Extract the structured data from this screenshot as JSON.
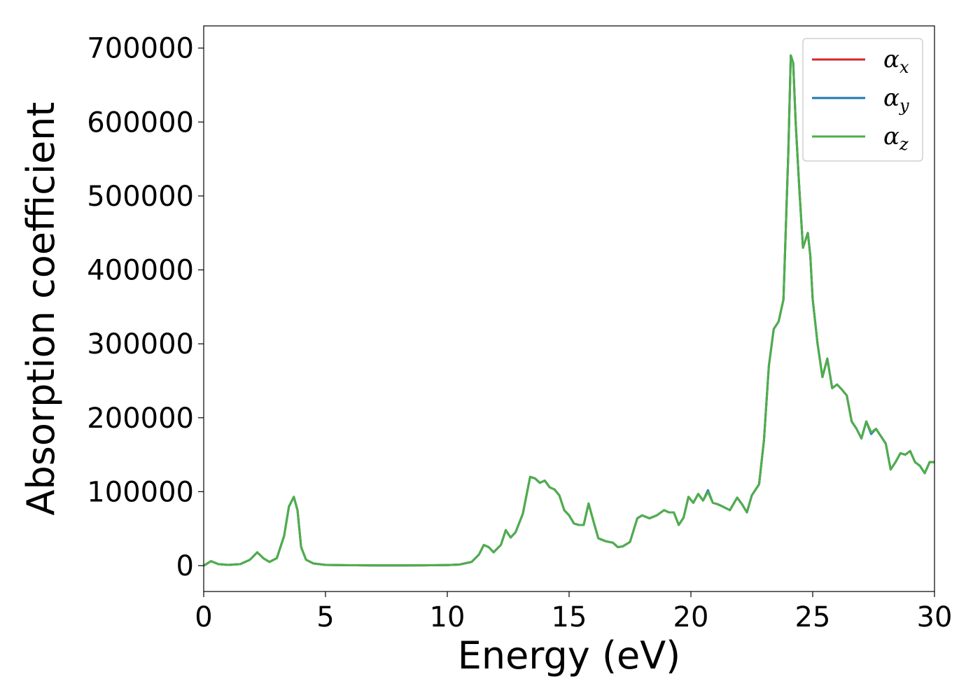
{
  "chart_data": {
    "type": "line",
    "xlabel": "Energy (eV)",
    "ylabel": "Absorption coefficient",
    "xlim": [
      0,
      30
    ],
    "ylim": [
      -35000,
      730000
    ],
    "xticks": [
      0,
      5,
      10,
      15,
      20,
      25,
      30
    ],
    "xtick_labels": [
      "0",
      "5",
      "10",
      "15",
      "20",
      "25",
      "30"
    ],
    "yticks": [
      0,
      100000,
      200000,
      300000,
      400000,
      500000,
      600000,
      700000
    ],
    "ytick_labels": [
      "0",
      "100000",
      "200000",
      "300000",
      "400000",
      "500000",
      "600000",
      "700000"
    ],
    "grid": false,
    "legend": {
      "position": "top-right",
      "entries": [
        {
          "symbol": "α",
          "sub": "x",
          "color": "#d62728"
        },
        {
          "symbol": "α",
          "sub": "y",
          "color": "#1f77b4"
        },
        {
          "symbol": "α",
          "sub": "z",
          "color": "#4daf4a"
        }
      ]
    },
    "x": [
      0,
      0.3,
      0.6,
      1.0,
      1.5,
      1.9,
      2.2,
      2.45,
      2.7,
      3.0,
      3.3,
      3.5,
      3.7,
      3.85,
      4.0,
      4.2,
      4.5,
      5,
      6,
      7,
      8,
      9,
      10,
      10.5,
      11.0,
      11.3,
      11.5,
      11.7,
      11.9,
      12.2,
      12.4,
      12.6,
      12.8,
      13.1,
      13.4,
      13.6,
      13.8,
      14.0,
      14.2,
      14.4,
      14.6,
      14.8,
      15.0,
      15.2,
      15.4,
      15.6,
      15.8,
      16.0,
      16.2,
      16.5,
      16.8,
      17.0,
      17.2,
      17.5,
      17.8,
      18.0,
      18.3,
      18.6,
      18.9,
      19.1,
      19.3,
      19.5,
      19.7,
      19.9,
      20.1,
      20.3,
      20.5,
      20.7,
      20.9,
      21.1,
      21.3,
      21.6,
      21.9,
      22.1,
      22.3,
      22.5,
      22.8,
      23.0,
      23.2,
      23.4,
      23.6,
      23.8,
      24.0,
      24.1,
      24.2,
      24.3,
      24.45,
      24.6,
      24.7,
      24.8,
      24.9,
      25.0,
      25.2,
      25.4,
      25.6,
      25.8,
      26.0,
      26.2,
      26.4,
      26.6,
      26.8,
      27.0,
      27.2,
      27.4,
      27.6,
      27.8,
      28.0,
      28.2,
      28.4,
      28.6,
      28.8,
      29.0,
      29.2,
      29.4,
      29.6,
      29.8,
      30.0
    ],
    "series": [
      {
        "name": "αx",
        "color": "#d62728",
        "values": [
          0,
          6000,
          2000,
          1000,
          2000,
          8000,
          18000,
          10000,
          5000,
          10000,
          40000,
          80000,
          93000,
          75000,
          25000,
          8000,
          3000,
          1000,
          500,
          300,
          300,
          400,
          800,
          1500,
          5000,
          15000,
          28000,
          25000,
          18000,
          28000,
          48000,
          38000,
          45000,
          70000,
          120000,
          118000,
          112000,
          115000,
          106000,
          103000,
          95000,
          75000,
          68000,
          57000,
          55000,
          55000,
          84000,
          60000,
          37000,
          33000,
          31000,
          25000,
          26000,
          32000,
          64000,
          68000,
          64000,
          68000,
          75000,
          72000,
          72000,
          55000,
          65000,
          93000,
          85000,
          97000,
          88000,
          100000,
          85000,
          83000,
          80000,
          75000,
          92000,
          83000,
          72000,
          95000,
          110000,
          170000,
          270000,
          320000,
          330000,
          360000,
          560000,
          690000,
          680000,
          600000,
          510000,
          430000,
          440000,
          450000,
          420000,
          360000,
          300000,
          255000,
          280000,
          240000,
          245000,
          238000,
          230000,
          195000,
          185000,
          172000,
          195000,
          180000,
          185000,
          175000,
          165000,
          130000,
          140000,
          152000,
          150000,
          155000,
          140000,
          135000,
          125000,
          140000,
          140000
        ]
      },
      {
        "name": "αy",
        "color": "#1f77b4",
        "values": [
          0,
          6000,
          2000,
          1000,
          2000,
          8000,
          18000,
          10000,
          5000,
          10000,
          40000,
          80000,
          93000,
          75000,
          25000,
          8000,
          3000,
          1000,
          500,
          300,
          300,
          400,
          800,
          1500,
          5000,
          15000,
          28000,
          25000,
          18000,
          28000,
          48000,
          38000,
          45000,
          70000,
          120000,
          118000,
          112000,
          115000,
          106000,
          103000,
          95000,
          75000,
          68000,
          57000,
          55000,
          55000,
          84000,
          60000,
          37000,
          33000,
          31000,
          25000,
          26000,
          32000,
          64000,
          68000,
          64000,
          68000,
          75000,
          72000,
          72000,
          55000,
          65000,
          93000,
          85000,
          97000,
          88000,
          102000,
          85000,
          83000,
          80000,
          75000,
          92000,
          83000,
          72000,
          95000,
          110000,
          170000,
          270000,
          320000,
          330000,
          360000,
          560000,
          690000,
          680000,
          600000,
          510000,
          430000,
          440000,
          450000,
          420000,
          360000,
          300000,
          255000,
          280000,
          240000,
          245000,
          238000,
          230000,
          195000,
          185000,
          172000,
          195000,
          178000,
          185000,
          175000,
          165000,
          130000,
          140000,
          152000,
          150000,
          155000,
          140000,
          135000,
          125000,
          140000,
          140000
        ]
      },
      {
        "name": "αz",
        "color": "#4daf4a",
        "values": [
          0,
          6000,
          2000,
          1000,
          2000,
          8000,
          18000,
          10000,
          5000,
          10000,
          40000,
          80000,
          93000,
          75000,
          25000,
          8000,
          3000,
          1000,
          500,
          300,
          300,
          400,
          800,
          1500,
          5000,
          15000,
          28000,
          25000,
          18000,
          28000,
          48000,
          38000,
          45000,
          70000,
          120000,
          118000,
          112000,
          115000,
          106000,
          103000,
          95000,
          75000,
          68000,
          57000,
          55000,
          55000,
          84000,
          60000,
          37000,
          33000,
          31000,
          25000,
          26000,
          32000,
          64000,
          68000,
          64000,
          68000,
          75000,
          72000,
          72000,
          55000,
          65000,
          93000,
          85000,
          97000,
          88000,
          100000,
          85000,
          83000,
          80000,
          75000,
          92000,
          83000,
          72000,
          95000,
          110000,
          170000,
          270000,
          320000,
          330000,
          360000,
          560000,
          690000,
          680000,
          600000,
          510000,
          430000,
          440000,
          450000,
          420000,
          360000,
          300000,
          255000,
          280000,
          240000,
          245000,
          238000,
          230000,
          195000,
          185000,
          172000,
          195000,
          180000,
          185000,
          175000,
          165000,
          130000,
          140000,
          152000,
          150000,
          155000,
          140000,
          135000,
          125000,
          140000,
          140000
        ]
      }
    ]
  }
}
